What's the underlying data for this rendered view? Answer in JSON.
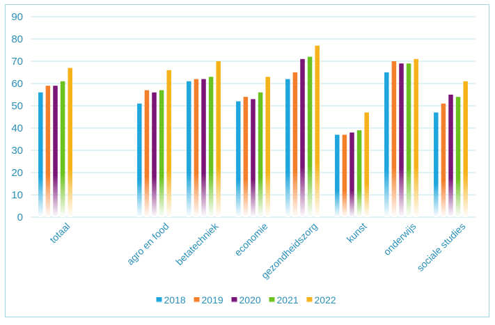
{
  "chart_data": {
    "type": "bar",
    "categories": [
      "totaal",
      "",
      "agro en food",
      "betatechniek",
      "economie",
      "gezondheidszorg",
      "kunst",
      "onderwijs",
      "sociale studies"
    ],
    "series": [
      {
        "name": "2018",
        "color": "#1fa6dc",
        "values": [
          56,
          null,
          51,
          61,
          52,
          62,
          37,
          65,
          47
        ]
      },
      {
        "name": "2019",
        "color": "#f47f2a",
        "values": [
          59,
          null,
          57,
          62,
          54,
          65,
          37,
          70,
          51
        ]
      },
      {
        "name": "2020",
        "color": "#7a1475",
        "values": [
          59,
          null,
          56,
          62,
          53,
          71,
          38,
          69,
          55
        ]
      },
      {
        "name": "2021",
        "color": "#6cc21e",
        "values": [
          61,
          null,
          57,
          63,
          56,
          72,
          39,
          69,
          54
        ]
      },
      {
        "name": "2022",
        "color": "#f6b21a",
        "values": [
          67,
          null,
          66,
          70,
          63,
          77,
          47,
          71,
          61
        ]
      }
    ],
    "ylim": [
      0,
      90
    ],
    "yticks": [
      "0",
      "10",
      "20",
      "30",
      "40",
      "50",
      "60",
      "70",
      "80",
      "90"
    ],
    "grid": true,
    "legend_position": "bottom"
  }
}
